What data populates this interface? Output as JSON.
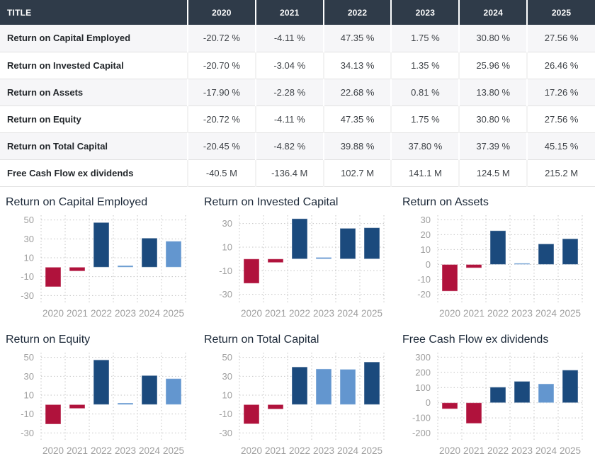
{
  "table": {
    "title_header": "TITLE",
    "year_headers": [
      "2020",
      "2021",
      "2022",
      "2023",
      "2024",
      "2025"
    ],
    "rows": [
      {
        "label": "Return on Capital Employed",
        "values": [
          "-20.72 %",
          "-4.11 %",
          "47.35 %",
          "1.75 %",
          "30.80 %",
          "27.56 %"
        ]
      },
      {
        "label": "Return on Invested Capital",
        "values": [
          "-20.70 %",
          "-3.04 %",
          "34.13 %",
          "1.35 %",
          "25.96 %",
          "26.46 %"
        ]
      },
      {
        "label": "Return on Assets",
        "values": [
          "-17.90 %",
          "-2.28 %",
          "22.68 %",
          "0.81 %",
          "13.80 %",
          "17.26 %"
        ]
      },
      {
        "label": "Return on Equity",
        "values": [
          "-20.72 %",
          "-4.11 %",
          "47.35 %",
          "1.75 %",
          "30.80 %",
          "27.56 %"
        ]
      },
      {
        "label": "Return on Total Capital",
        "values": [
          "-20.45 %",
          "-4.82 %",
          "39.88 %",
          "37.80 %",
          "37.39 %",
          "45.15 %"
        ]
      },
      {
        "label": "Free Cash Flow ex dividends",
        "values": [
          "-40.5 M",
          "-136.4 M",
          "102.7 M",
          "141.1 M",
          "124.5 M",
          "215.2 M"
        ]
      }
    ]
  },
  "colors": {
    "header_bg": "#2f3b49",
    "header_text": "#ffffff",
    "row_stripe": "#f6f6f8",
    "negative_bar": "#b0123c",
    "increase_bar": "#1b4a7d",
    "decrease_bar": "#6396cf",
    "grid_line": "#c4c4c4",
    "tick_text": "#9e9e9e",
    "chart_title_text": "#1b2838"
  },
  "chart_data": [
    {
      "type": "bar",
      "title": "Return on Capital Employed",
      "categories": [
        "2020",
        "2021",
        "2022",
        "2023",
        "2024",
        "2025"
      ],
      "values": [
        -20.72,
        -4.11,
        47.35,
        1.75,
        30.8,
        27.56
      ],
      "unit": "%",
      "yticks": [
        50,
        30,
        10,
        -10,
        -30
      ],
      "ylim": [
        -35,
        55
      ],
      "bar_colors": [
        "neg",
        "neg",
        "up",
        "down",
        "up",
        "down"
      ],
      "grid": true,
      "legend": "none"
    },
    {
      "type": "bar",
      "title": "Return on Invested Capital",
      "categories": [
        "2020",
        "2021",
        "2022",
        "2023",
        "2024",
        "2025"
      ],
      "values": [
        -20.7,
        -3.04,
        34.13,
        1.35,
        25.96,
        26.46
      ],
      "unit": "%",
      "yticks": [
        30,
        10,
        -10,
        -30
      ],
      "ylim": [
        -35,
        37
      ],
      "bar_colors": [
        "neg",
        "neg",
        "up",
        "down",
        "up",
        "up"
      ],
      "grid": true,
      "legend": "none"
    },
    {
      "type": "bar",
      "title": "Return on Assets",
      "categories": [
        "2020",
        "2021",
        "2022",
        "2023",
        "2024",
        "2025"
      ],
      "values": [
        -17.9,
        -2.28,
        22.68,
        0.81,
        13.8,
        17.26
      ],
      "unit": "%",
      "yticks": [
        30,
        20,
        10,
        0,
        -10,
        -20
      ],
      "ylim": [
        -24,
        33
      ],
      "bar_colors": [
        "neg",
        "neg",
        "up",
        "down",
        "up",
        "up"
      ],
      "grid": true,
      "legend": "none"
    },
    {
      "type": "bar",
      "title": "Return on Equity",
      "categories": [
        "2020",
        "2021",
        "2022",
        "2023",
        "2024",
        "2025"
      ],
      "values": [
        -20.72,
        -4.11,
        47.35,
        1.75,
        30.8,
        27.56
      ],
      "unit": "%",
      "yticks": [
        50,
        30,
        10,
        -10,
        -30
      ],
      "ylim": [
        -35,
        55
      ],
      "bar_colors": [
        "neg",
        "neg",
        "up",
        "down",
        "up",
        "down"
      ],
      "grid": true,
      "legend": "none"
    },
    {
      "type": "bar",
      "title": "Return on Total Capital",
      "categories": [
        "2020",
        "2021",
        "2022",
        "2023",
        "2024",
        "2025"
      ],
      "values": [
        -20.45,
        -4.82,
        39.88,
        37.8,
        37.39,
        45.15
      ],
      "unit": "%",
      "yticks": [
        50,
        30,
        10,
        -10,
        -30
      ],
      "ylim": [
        -35,
        55
      ],
      "bar_colors": [
        "neg",
        "neg",
        "up",
        "down",
        "down",
        "up"
      ],
      "grid": true,
      "legend": "none"
    },
    {
      "type": "bar",
      "title": "Free Cash Flow ex dividends",
      "categories": [
        "2020",
        "2021",
        "2022",
        "2023",
        "2024",
        "2025"
      ],
      "values": [
        -40.5,
        -136.4,
        102.7,
        141.1,
        124.5,
        215.2
      ],
      "unit": "M",
      "yticks": [
        300,
        200,
        100,
        0,
        -100,
        -200
      ],
      "ylim": [
        -230,
        330
      ],
      "bar_colors": [
        "neg",
        "neg",
        "up",
        "up",
        "down",
        "up"
      ],
      "grid": true,
      "legend": "none"
    }
  ]
}
